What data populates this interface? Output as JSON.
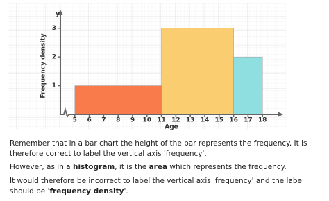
{
  "chart_data": {
    "type": "histogram",
    "y_label": "y",
    "y_title": "Frequency density",
    "x_title": "Age",
    "bins": [
      5,
      11,
      16,
      18
    ],
    "values": [
      1,
      3,
      2
    ],
    "colors": [
      "#f97b4c",
      "#f9cd70",
      "#8fdfe1"
    ],
    "xlim": [
      4,
      19
    ],
    "ylim": [
      0,
      3.5
    ],
    "xticks": [
      5,
      6,
      7,
      8,
      9,
      10,
      11,
      12,
      13,
      14,
      15,
      16,
      17,
      18
    ],
    "yticks": [
      1,
      2,
      3
    ]
  },
  "text": {
    "p1": "Remember that in a bar chart the height of the bar represents the frequency. It is therefore correct to label the vertical axis 'frequency'.",
    "p2": [
      "However, as in a ",
      "histogram",
      ", it is the ",
      "area",
      " which represents the frequency."
    ],
    "p3": [
      "It would therefore be incorrect to label the vertical axis 'frequency' and the label should be '",
      "frequency density",
      "'."
    ]
  }
}
